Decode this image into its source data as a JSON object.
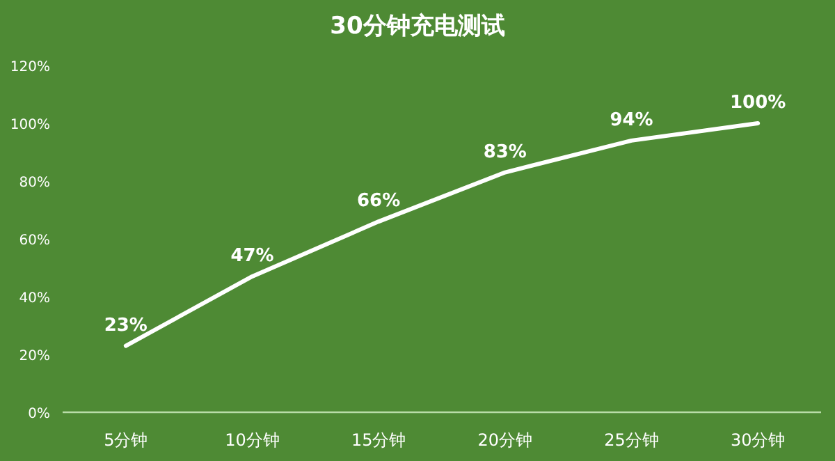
{
  "chart_data": {
    "type": "line",
    "title": "30分钟充电测试",
    "categories": [
      "5分钟",
      "10分钟",
      "15分钟",
      "20分钟",
      "25分钟",
      "30分钟"
    ],
    "values": [
      23,
      47,
      66,
      83,
      94,
      100
    ],
    "value_labels": [
      "23%",
      "47%",
      "66%",
      "83%",
      "94%",
      "100%"
    ],
    "color": "#ffffff",
    "ylim": [
      0,
      120
    ],
    "yticks": [
      {
        "value": 0,
        "label": "0%"
      },
      {
        "value": 20,
        "label": "20%"
      },
      {
        "value": 40,
        "label": "40%"
      },
      {
        "value": 60,
        "label": "60%"
      },
      {
        "value": 80,
        "label": "80%"
      },
      {
        "value": 100,
        "label": "100%"
      },
      {
        "value": 120,
        "label": "120%"
      }
    ],
    "grid": false,
    "marker": "none",
    "line_style": "solid"
  }
}
